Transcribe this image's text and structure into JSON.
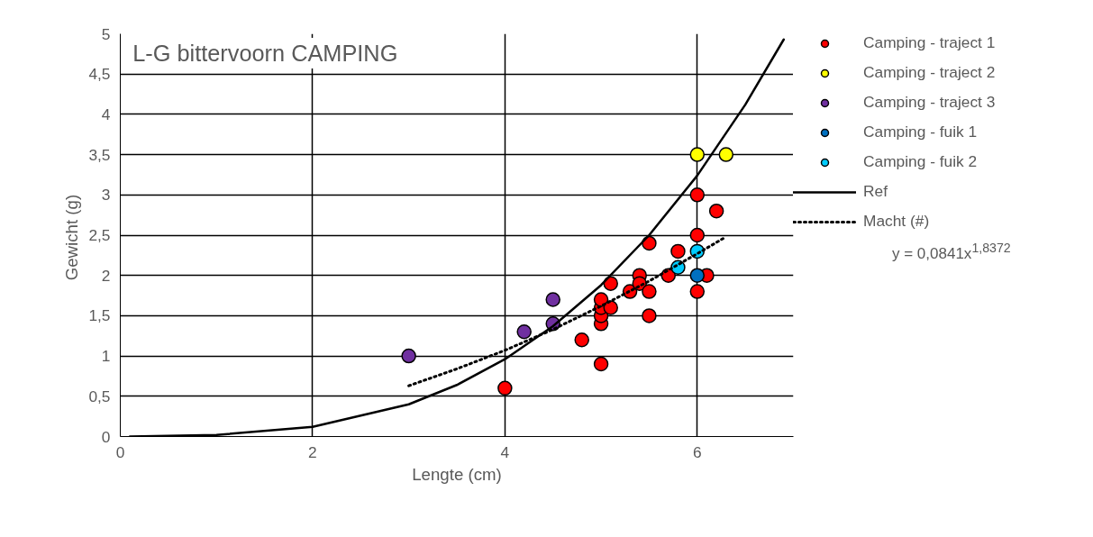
{
  "chart_data": {
    "type": "scatter",
    "title": "L-G bittervoorn CAMPING",
    "xlabel": "Lengte (cm)",
    "ylabel": "Gewicht  (g)",
    "xlim": [
      0,
      7
    ],
    "xticks": [
      0,
      2,
      4,
      6
    ],
    "ylim": [
      0,
      5
    ],
    "yticks": [
      0,
      {
        "value": 0.5,
        "label": "0,5"
      },
      1,
      {
        "value": 1.5,
        "label": "1,5"
      },
      2,
      {
        "value": 2.5,
        "label": "2,5"
      },
      3,
      {
        "value": 3.5,
        "label": "3,5"
      },
      4,
      {
        "value": 4.5,
        "label": "4,5"
      },
      5
    ],
    "grid": true,
    "legend": "right",
    "marker": "circle",
    "annotations": [
      "y = 0,0841x$^{1,8372}$"
    ],
    "series": [
      {
        "name": "Camping - traject 1",
        "color": "#ff0000",
        "x": [
          4,
          4.8,
          5,
          5,
          5,
          5,
          5,
          5.1,
          5.1,
          5.3,
          5.4,
          5.4,
          5.5,
          5.5,
          5.5,
          5.7,
          5.8,
          6,
          6,
          6,
          6.1,
          6.2
        ],
        "values": [
          0.6,
          1.2,
          0.9,
          1.4,
          1.5,
          1.6,
          1.7,
          1.6,
          1.9,
          1.8,
          2.0,
          1.9,
          1.8,
          1.5,
          2.4,
          2.0,
          2.3,
          1.8,
          2.5,
          3.0,
          2.0,
          2.8
        ]
      },
      {
        "name": "Camping - traject 2",
        "color": "#ffff00",
        "x": [
          6,
          6.3
        ],
        "values": [
          3.5,
          3.5
        ]
      },
      {
        "name": "Camping - traject 3",
        "color": "#7030a0",
        "x": [
          3,
          4.2,
          4.5,
          4.5
        ],
        "values": [
          1.0,
          1.3,
          1.4,
          1.7
        ]
      },
      {
        "name": "Camping - fuik 1",
        "color": "#0070c0",
        "x": [
          6
        ],
        "values": [
          2.0
        ]
      },
      {
        "name": "Camping - fuik 2",
        "color": "#00ccff",
        "x": [
          5.8,
          6
        ],
        "values": [
          2.1,
          2.3
        ]
      },
      {
        "name": "Ref",
        "type": "line",
        "line_style": "solid",
        "marker": "none",
        "color": "#000000",
        "x": [
          0.1,
          1,
          2,
          3,
          3.5,
          4,
          4.5,
          5,
          5.5,
          6,
          6.5,
          6.9
        ],
        "values": [
          0,
          0.02,
          0.12,
          0.4,
          0.64,
          0.96,
          1.37,
          1.88,
          2.5,
          3.24,
          4.12,
          4.93
        ]
      },
      {
        "name": "Macht (#)",
        "type": "line",
        "line_style": "dotted",
        "marker": "none",
        "color": "#000000",
        "x": [
          3,
          3.5,
          4,
          4.5,
          5,
          5.5,
          6,
          6.3
        ],
        "values": [
          0.63,
          0.84,
          1.07,
          1.33,
          1.62,
          1.93,
          2.27,
          2.48
        ]
      }
    ]
  }
}
